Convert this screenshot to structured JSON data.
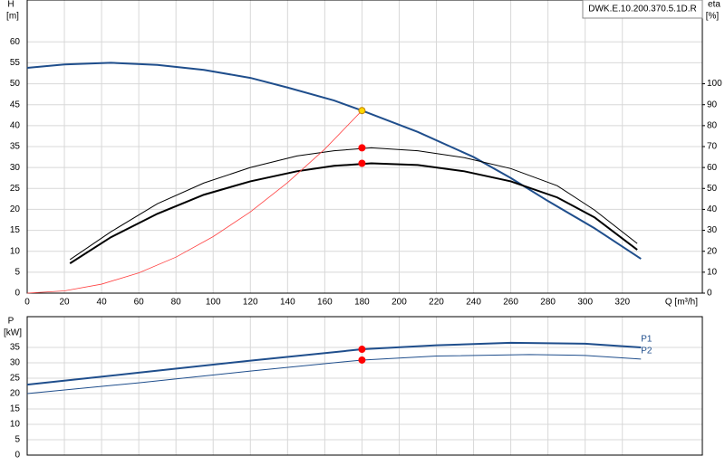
{
  "chart_data": [
    {
      "type": "line",
      "annotation": "DWK.E.10.200.370.5.1D.R",
      "ylabel": "H",
      "yunit": "[m]",
      "y2label": "eta",
      "y2unit": "[%]",
      "xlabel": "Q [m³/h]",
      "xlim": [
        0,
        363
      ],
      "xticks": [
        0,
        20,
        40,
        60,
        80,
        100,
        120,
        140,
        160,
        180,
        200,
        220,
        240,
        260,
        280,
        300,
        320
      ],
      "ylim": [
        0,
        70
      ],
      "yticks": [
        0,
        5,
        10,
        15,
        20,
        25,
        30,
        35,
        40,
        45,
        50,
        55,
        60
      ],
      "y2lim": [
        0,
        140
      ],
      "y2ticks": [
        0,
        10,
        20,
        30,
        40,
        50,
        60,
        70,
        80,
        90,
        100
      ],
      "grid": true,
      "series": [
        {
          "color": "#1f4e8c",
          "width": 2,
          "x": [
            0,
            20,
            45,
            70,
            95,
            120,
            140,
            165,
            180,
            210,
            240,
            260,
            280,
            305,
            330
          ],
          "values": [
            53.8,
            54.6,
            55,
            54.5,
            53.3,
            51.4,
            49.1,
            46,
            43.6,
            38.5,
            32.5,
            27.5,
            22,
            15.5,
            8.2
          ]
        },
        {
          "color": "#000000",
          "width": 1,
          "axis": "y2",
          "x": [
            23,
            45,
            70,
            95,
            120,
            145,
            165,
            185,
            210,
            235,
            260,
            285,
            305,
            328
          ],
          "values": [
            16,
            29.3,
            42.7,
            52.6,
            60,
            65.5,
            68,
            69.4,
            68,
            64.7,
            59.5,
            51.3,
            39.7,
            23.7
          ]
        },
        {
          "color": "#000000",
          "width": 2,
          "axis": "y2",
          "x": [
            23,
            45,
            70,
            95,
            120,
            145,
            165,
            185,
            210,
            235,
            260,
            285,
            305,
            328
          ],
          "values": [
            14.2,
            26.7,
            37.9,
            47,
            53.4,
            58.2,
            60.8,
            62,
            61.2,
            58.2,
            53.4,
            45.7,
            36.2,
            20.7
          ]
        },
        {
          "color": "#ff4040",
          "width": 0.8,
          "x": [
            0,
            20,
            40,
            60,
            80,
            100,
            120,
            140,
            160,
            180
          ],
          "values": [
            0,
            0.54,
            2.15,
            4.84,
            8.6,
            13.5,
            19.4,
            26.4,
            34.4,
            43.6
          ]
        },
        {
          "color": "#ffd700",
          "marker": true,
          "x": [
            180
          ],
          "values": [
            43.6
          ]
        },
        {
          "color": "#ff0000",
          "marker": true,
          "axis": "y2",
          "x": [
            180,
            180
          ],
          "values": [
            69.4,
            62
          ]
        }
      ]
    },
    {
      "type": "line",
      "ylabel": "P",
      "yunit": "[kW]",
      "xlim": [
        0,
        363
      ],
      "xticks": [
        0,
        20,
        40,
        60,
        80,
        100,
        120,
        140,
        160,
        180,
        200,
        220,
        240,
        260,
        280,
        300,
        320
      ],
      "ylim": [
        0,
        45
      ],
      "yticks": [
        0,
        5,
        10,
        15,
        20,
        25,
        30,
        35
      ],
      "grid": true,
      "series": [
        {
          "name": "P1",
          "color": "#1f4e8c",
          "width": 2,
          "x": [
            0,
            60,
            120,
            180,
            220,
            260,
            300,
            330
          ],
          "values": [
            22.9,
            26.8,
            30.7,
            34.4,
            35.7,
            36.5,
            36.2,
            35
          ]
        },
        {
          "name": "P2",
          "color": "#1f4e8c",
          "width": 1,
          "x": [
            0,
            60,
            120,
            180,
            220,
            270,
            300,
            330
          ],
          "values": [
            20,
            23.5,
            27.3,
            30.9,
            32.2,
            32.7,
            32.4,
            31.2
          ]
        },
        {
          "color": "#ff0000",
          "marker": true,
          "x": [
            180,
            180
          ],
          "values": [
            34.4,
            30.9
          ]
        }
      ]
    }
  ]
}
